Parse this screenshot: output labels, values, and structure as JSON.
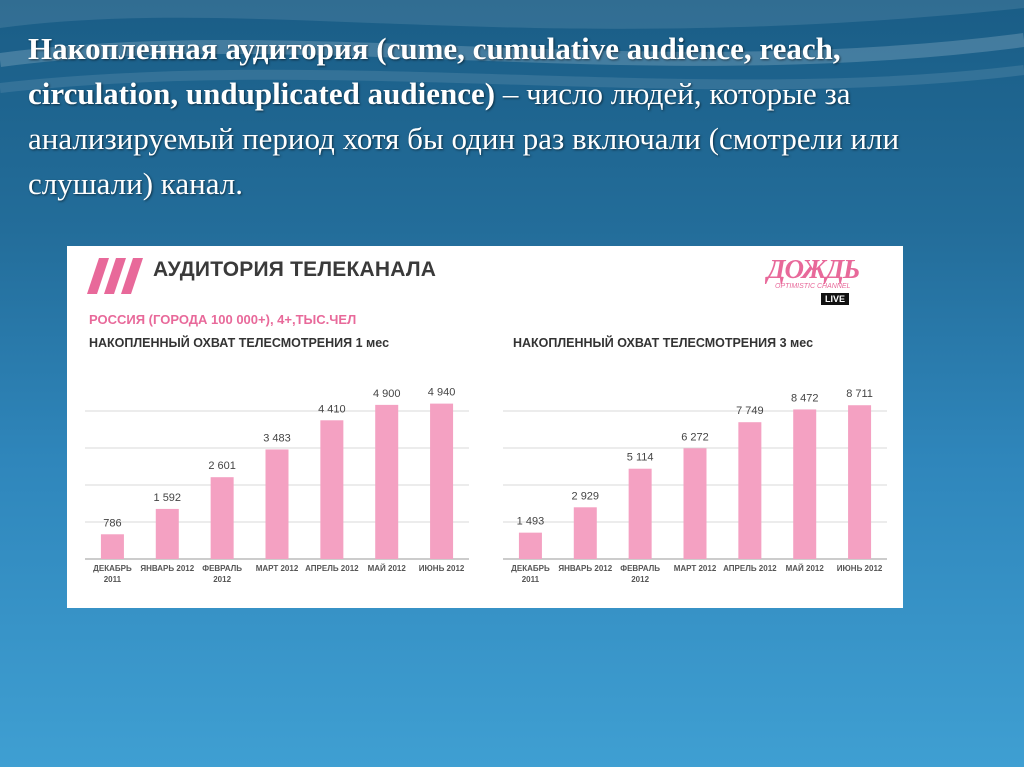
{
  "heading": {
    "bold": "Накопленная аудитория (cume, cumulative audience, reach, circulation, unduplicated audience)",
    "rest": " – число людей, которые за анализируемый период хотя бы один раз включали (смотрели или слушали) канал."
  },
  "panel": {
    "title": "АУДИТОРИЯ ТЕЛЕКАНАЛА",
    "subtitle": "РОССИЯ (ГОРОДА 100 000+), 4+,ТЫС.ЧЕЛ",
    "logo": {
      "word": "ДОЖДЬ",
      "tagline": "OPTIMISTIC CHANNEL",
      "live": "LIVE"
    }
  },
  "colors": {
    "bar": "#f4a1c2",
    "accent": "#e8699a"
  },
  "chart_data": [
    {
      "type": "bar",
      "title": "НАКОПЛЕННЫЙ ОХВАТ ТЕЛЕСМОТРЕНИЯ 1 мес",
      "categories": [
        [
          "ДЕКАБРЬ",
          "2011"
        ],
        [
          "ЯНВАРЬ 2012"
        ],
        [
          "ФЕВРАЛЬ",
          "2012"
        ],
        [
          "МАРТ 2012"
        ],
        [
          "АПРЕЛЬ 2012"
        ],
        [
          "МАЙ 2012"
        ],
        [
          "ИЮНЬ 2012"
        ]
      ],
      "values": [
        786,
        1592,
        2601,
        3483,
        4410,
        4900,
        4940
      ],
      "value_labels": [
        "786",
        "1 592",
        "2 601",
        "3 483",
        "4 410",
        "4 900",
        "4 940"
      ],
      "ylim": [
        0,
        5500
      ],
      "grid": true
    },
    {
      "type": "bar",
      "title": "НАКОПЛЕННЫЙ ОХВАТ ТЕЛЕСМОТРЕНИЯ 3 мес",
      "categories": [
        [
          "ДЕКАБРЬ",
          "2011"
        ],
        [
          "ЯНВАРЬ 2012"
        ],
        [
          "ФЕВРАЛЬ",
          "2012"
        ],
        [
          "МАРТ 2012"
        ],
        [
          "АПРЕЛЬ 2012"
        ],
        [
          "МАЙ 2012"
        ],
        [
          "ИЮНЬ 2012"
        ]
      ],
      "values": [
        1493,
        2929,
        5114,
        6272,
        7749,
        8472,
        8711
      ],
      "value_labels": [
        "1 493",
        "2 929",
        "5 114",
        "6 272",
        "7 749",
        "8 472",
        "8 711"
      ],
      "ylim": [
        0,
        9800
      ],
      "grid": true
    }
  ]
}
